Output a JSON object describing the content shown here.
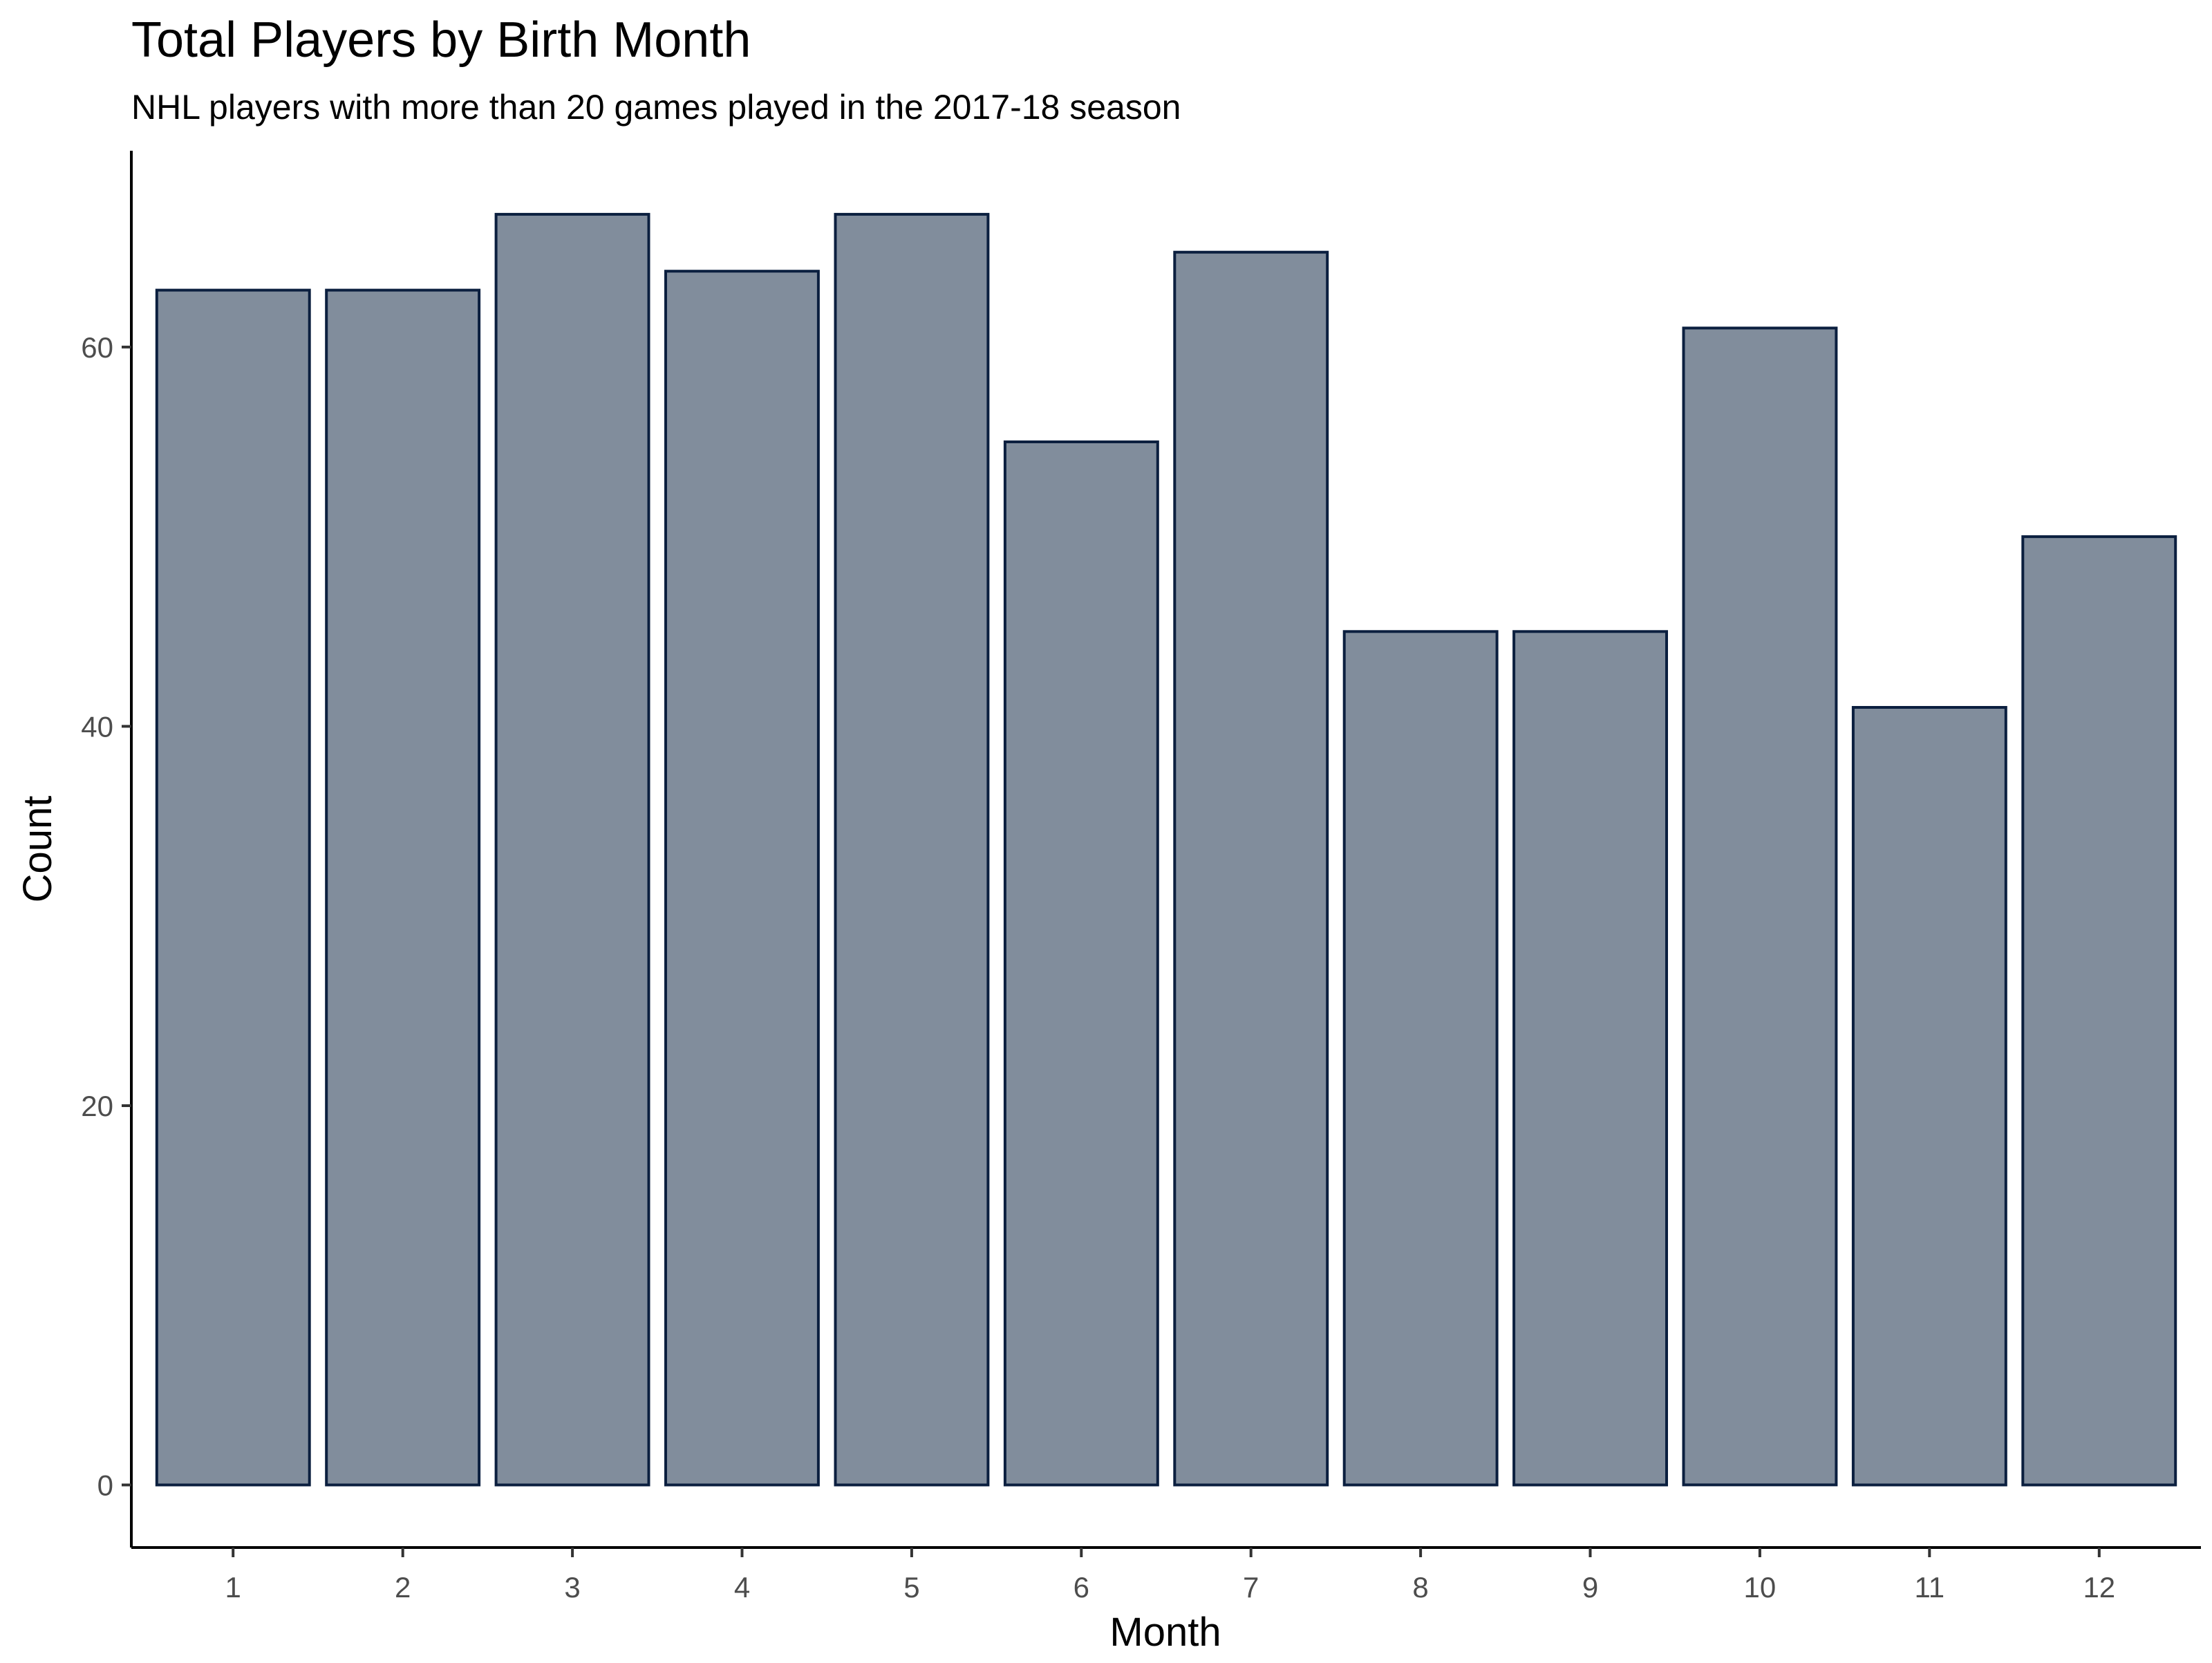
{
  "chart_data": {
    "type": "bar",
    "title": "Total Players by Birth Month",
    "subtitle": "NHL players with more than 20 games played in the 2017-18 season",
    "xlabel": "Month",
    "ylabel": "Count",
    "categories": [
      "1",
      "2",
      "3",
      "4",
      "5",
      "6",
      "7",
      "8",
      "9",
      "10",
      "11",
      "12"
    ],
    "values": [
      63,
      63,
      67,
      64,
      67,
      55,
      65,
      45,
      45,
      61,
      41,
      50
    ],
    "ylim": [
      -3.3,
      70.35
    ],
    "yticks": [
      0,
      20,
      40,
      60
    ],
    "ytick_labels": [
      "0",
      "20",
      "40",
      "60"
    ],
    "grid": false,
    "legend": "none",
    "colors": {
      "bar_fill": "#818d9c",
      "bar_stroke": "#0b1f3f",
      "axis": "#000000",
      "tick_label": "#4d4d4d"
    }
  }
}
